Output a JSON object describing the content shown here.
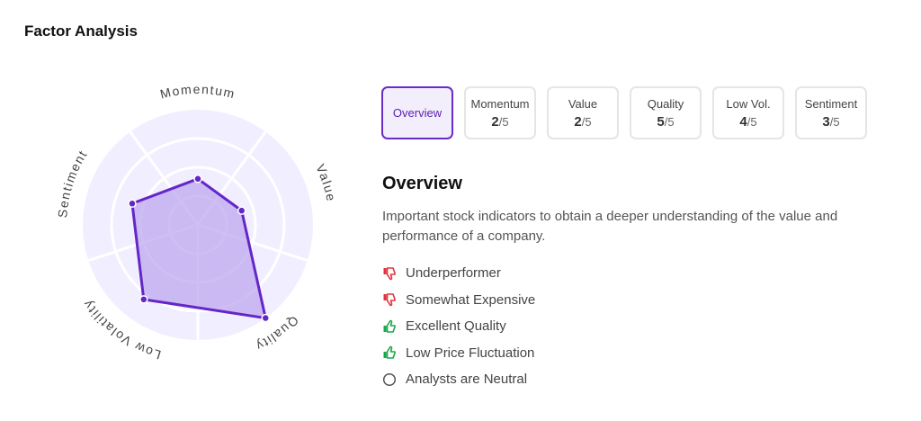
{
  "title": "Factor Analysis",
  "radar": {
    "axes": [
      "Momentum",
      "Value",
      "Quality",
      "Low Volatility",
      "Sentiment"
    ],
    "max": 5,
    "rings": 4,
    "values": [
      2,
      2,
      5,
      4,
      3
    ],
    "colors": {
      "bg": "#f1efff",
      "line": "#6526c6",
      "fill": "#b9a3ee",
      "grid": "#ffffff"
    }
  },
  "tabs": [
    {
      "label": "Overview",
      "active": true
    },
    {
      "label": "Momentum",
      "score": "2",
      "max": "/5"
    },
    {
      "label": "Value",
      "score": "2",
      "max": "/5"
    },
    {
      "label": "Quality",
      "score": "5",
      "max": "/5"
    },
    {
      "label": "Low Vol.",
      "score": "4",
      "max": "/5"
    },
    {
      "label": "Sentiment",
      "score": "3",
      "max": "/5"
    }
  ],
  "overview": {
    "title": "Overview",
    "description": "Important stock indicators to obtain a deeper understanding of the value and performance of a company.",
    "items": [
      {
        "text": "Underperformer",
        "icon": "thumbs-down-icon",
        "color": "#e0343c"
      },
      {
        "text": "Somewhat Expensive",
        "icon": "thumbs-down-icon",
        "color": "#e0343c"
      },
      {
        "text": "Excellent Quality",
        "icon": "thumbs-up-icon",
        "color": "#1ea64a"
      },
      {
        "text": "Low Price Fluctuation",
        "icon": "thumbs-up-icon",
        "color": "#1ea64a"
      },
      {
        "text": "Analysts are Neutral",
        "icon": "circle-icon",
        "color": "#555555"
      }
    ]
  }
}
